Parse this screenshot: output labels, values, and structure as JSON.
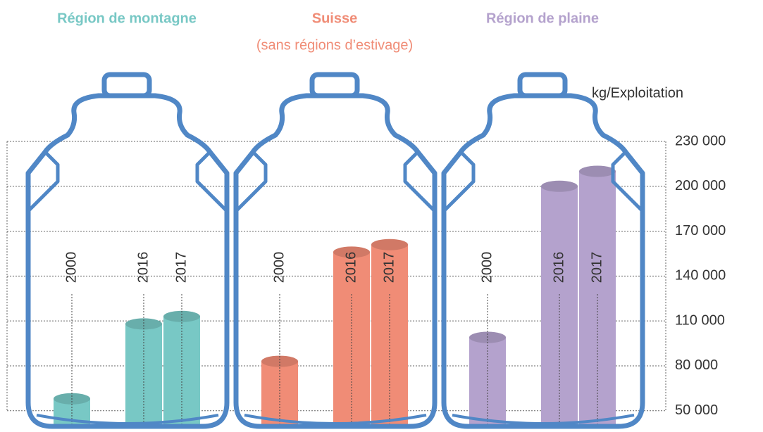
{
  "chart_data": {
    "type": "bar",
    "y_label": "kg/Exploitation",
    "categories": [
      "2000",
      "2016",
      "2017"
    ],
    "series": [
      {
        "name": "Région de montagne",
        "color": "#78c8c5",
        "values": [
          58000,
          108000,
          113000
        ]
      },
      {
        "name": "Suisse",
        "subtitle": "(sans régions d’estivage)",
        "color": "#f08c76",
        "values": [
          83000,
          156000,
          161000
        ]
      },
      {
        "name": "Région de plaine",
        "color": "#b4a2cd",
        "values": [
          99000,
          200000,
          210000
        ]
      }
    ],
    "ylim": [
      40000,
      230000
    ],
    "yticks": [
      {
        "value": 50000,
        "label": "50 000"
      },
      {
        "value": 80000,
        "label": "80 000"
      },
      {
        "value": 110000,
        "label": "110 000"
      },
      {
        "value": 140000,
        "label": "140 000"
      },
      {
        "value": 170000,
        "label": "170 000"
      },
      {
        "value": 200000,
        "label": "200 000"
      },
      {
        "value": 230000,
        "label": "230 000"
      }
    ],
    "grid": true
  }
}
